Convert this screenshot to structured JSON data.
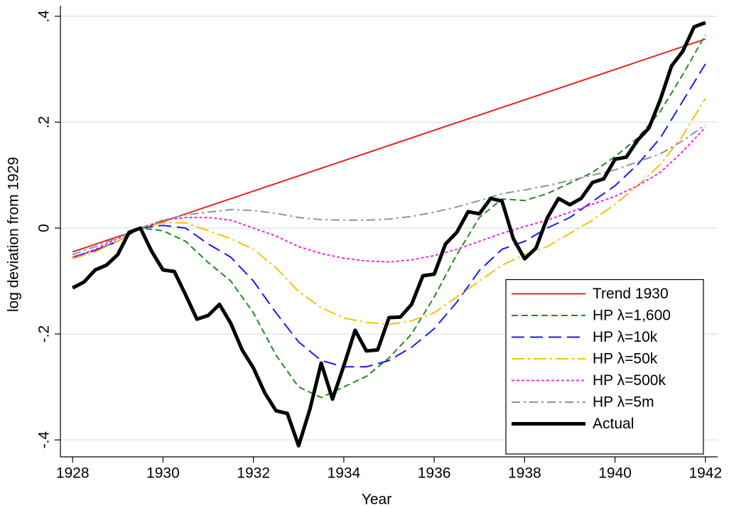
{
  "chart_data": {
    "type": "line",
    "xlabel": "Year",
    "ylabel": "log deviation from 1929",
    "xlim": [
      1927.73,
      1942.27
    ],
    "ylim": [
      -0.432,
      0.42
    ],
    "xticks": [
      1928,
      1930,
      1932,
      1934,
      1936,
      1938,
      1940,
      1942
    ],
    "yticks": [
      {
        "value": -0.4,
        "label": "-.4"
      },
      {
        "value": -0.2,
        "label": "-.2"
      },
      0,
      {
        "value": 0.2,
        "label": ".2"
      },
      {
        "value": 0.4,
        "label": ".4"
      }
    ],
    "grid": true,
    "legend": "bottom-right",
    "series": [
      {
        "name": "Trend 1930",
        "color": "#e8231c",
        "dash": "none",
        "width": 2,
        "x": [
          1928,
          1942
        ],
        "values": [
          -0.045,
          0.357
        ]
      },
      {
        "name": "HP λ=1,600",
        "color": "#238b21",
        "dash": "9,5",
        "width": 2,
        "x": [
          1928,
          1928.5,
          1929,
          1929.5,
          1930,
          1930.5,
          1931,
          1931.5,
          1932,
          1932.5,
          1933,
          1933.5,
          1934,
          1934.5,
          1935,
          1935.5,
          1936,
          1936.5,
          1937,
          1937.5,
          1938,
          1938.5,
          1939,
          1939.5,
          1940,
          1940.5,
          1941,
          1941.5,
          1942
        ],
        "values": [
          -0.055,
          -0.042,
          -0.025,
          0.0,
          -0.005,
          -0.025,
          -0.065,
          -0.1,
          -0.16,
          -0.24,
          -0.3,
          -0.32,
          -0.3,
          -0.28,
          -0.245,
          -0.2,
          -0.13,
          -0.05,
          0.02,
          0.055,
          0.052,
          0.065,
          0.085,
          0.105,
          0.135,
          0.17,
          0.22,
          0.29,
          0.365
        ]
      },
      {
        "name": "HP λ=10k",
        "color": "#1a1aee",
        "dash": "18,8",
        "width": 2,
        "x": [
          1928,
          1928.5,
          1929,
          1929.5,
          1930,
          1930.5,
          1931,
          1931.5,
          1932,
          1932.5,
          1933,
          1933.5,
          1934,
          1934.5,
          1935,
          1935.5,
          1936,
          1936.5,
          1937,
          1937.5,
          1938,
          1938.5,
          1939,
          1939.5,
          1940,
          1940.5,
          1941,
          1941.5,
          1942
        ],
        "values": [
          -0.055,
          -0.042,
          -0.025,
          0.0,
          0.005,
          0.0,
          -0.03,
          -0.055,
          -0.1,
          -0.16,
          -0.215,
          -0.25,
          -0.262,
          -0.262,
          -0.25,
          -0.225,
          -0.19,
          -0.14,
          -0.08,
          -0.04,
          -0.025,
          0.0,
          0.02,
          0.05,
          0.08,
          0.12,
          0.17,
          0.24,
          0.31
        ]
      },
      {
        "name": "HP λ=50k",
        "color": "#f5c20a",
        "dash": "18,5,3,5",
        "width": 2,
        "x": [
          1928,
          1928.5,
          1929,
          1929.5,
          1930,
          1930.5,
          1931,
          1931.5,
          1932,
          1932.5,
          1933,
          1933.5,
          1934,
          1934.5,
          1935,
          1935.5,
          1936,
          1936.5,
          1937,
          1937.5,
          1938,
          1938.5,
          1939,
          1939.5,
          1940,
          1940.5,
          1941,
          1941.5,
          1942
        ],
        "values": [
          -0.058,
          -0.045,
          -0.025,
          0.0,
          0.01,
          0.01,
          -0.005,
          -0.02,
          -0.04,
          -0.075,
          -0.12,
          -0.15,
          -0.17,
          -0.178,
          -0.182,
          -0.175,
          -0.16,
          -0.13,
          -0.1,
          -0.07,
          -0.05,
          -0.035,
          -0.01,
          0.015,
          0.045,
          0.08,
          0.12,
          0.175,
          0.245
        ]
      },
      {
        "name": "HP λ=500k",
        "color": "#f026f0",
        "dash": "4,3",
        "width": 2,
        "x": [
          1928,
          1928.5,
          1929,
          1929.5,
          1930,
          1930.5,
          1931,
          1931.5,
          1932,
          1932.5,
          1933,
          1933.5,
          1934,
          1934.5,
          1935,
          1935.5,
          1936,
          1936.5,
          1937,
          1937.5,
          1938,
          1938.5,
          1939,
          1939.5,
          1940,
          1940.5,
          1941,
          1941.5,
          1942
        ],
        "values": [
          -0.055,
          -0.04,
          -0.02,
          0.0,
          0.015,
          0.02,
          0.02,
          0.015,
          0.0,
          -0.015,
          -0.035,
          -0.048,
          -0.057,
          -0.062,
          -0.064,
          -0.06,
          -0.052,
          -0.04,
          -0.025,
          -0.01,
          0.003,
          0.015,
          0.03,
          0.045,
          0.06,
          0.08,
          0.105,
          0.145,
          0.19
        ]
      },
      {
        "name": "HP λ=5m",
        "color": "#8c9696",
        "dash": "12,5,3,5",
        "width": 2,
        "x": [
          1928,
          1928.5,
          1929,
          1929.5,
          1930,
          1930.5,
          1931,
          1931.5,
          1932,
          1932.5,
          1933,
          1933.5,
          1934,
          1934.5,
          1935,
          1935.5,
          1936,
          1936.5,
          1937,
          1937.5,
          1938,
          1938.5,
          1939,
          1939.5,
          1940,
          1940.5,
          1941,
          1941.5,
          1942
        ],
        "values": [
          -0.05,
          -0.035,
          -0.018,
          0.0,
          0.015,
          0.025,
          0.03,
          0.035,
          0.033,
          0.028,
          0.02,
          0.016,
          0.015,
          0.015,
          0.017,
          0.022,
          0.03,
          0.04,
          0.052,
          0.065,
          0.072,
          0.08,
          0.09,
          0.1,
          0.11,
          0.125,
          0.14,
          0.165,
          0.195
        ]
      },
      {
        "name": "Actual",
        "color": "#000000",
        "dash": "none",
        "width": 5,
        "x": [
          1928,
          1928.25,
          1928.5,
          1928.75,
          1929,
          1929.25,
          1929.5,
          1929.75,
          1930,
          1930.25,
          1930.5,
          1930.75,
          1931,
          1931.25,
          1931.5,
          1931.75,
          1932,
          1932.25,
          1932.5,
          1932.75,
          1933,
          1933.25,
          1933.5,
          1933.75,
          1934,
          1934.25,
          1934.5,
          1934.75,
          1935,
          1935.25,
          1935.5,
          1935.75,
          1936,
          1936.25,
          1936.5,
          1936.75,
          1937,
          1937.25,
          1937.5,
          1937.75,
          1938,
          1938.25,
          1938.5,
          1938.75,
          1939,
          1939.25,
          1939.5,
          1939.75,
          1940,
          1940.25,
          1940.5,
          1940.75,
          1941,
          1941.25,
          1941.5,
          1941.75,
          1942
        ],
        "values": [
          -0.113,
          -0.102,
          -0.079,
          -0.07,
          -0.05,
          -0.008,
          0.0,
          -0.044,
          -0.079,
          -0.082,
          -0.126,
          -0.172,
          -0.165,
          -0.144,
          -0.18,
          -0.23,
          -0.264,
          -0.311,
          -0.345,
          -0.35,
          -0.411,
          -0.342,
          -0.255,
          -0.323,
          -0.26,
          -0.193,
          -0.232,
          -0.23,
          -0.169,
          -0.168,
          -0.144,
          -0.09,
          -0.087,
          -0.03,
          -0.008,
          0.031,
          0.027,
          0.056,
          0.051,
          -0.02,
          -0.058,
          -0.038,
          0.019,
          0.056,
          0.044,
          0.056,
          0.086,
          0.093,
          0.13,
          0.134,
          0.166,
          0.189,
          0.242,
          0.306,
          0.334,
          0.38,
          0.388
        ]
      }
    ]
  }
}
